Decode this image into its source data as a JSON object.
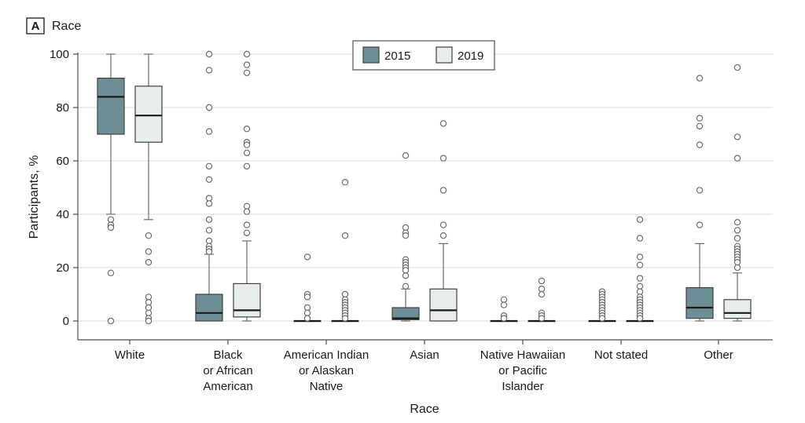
{
  "chart_data": {
    "type": "box",
    "panel_letter": "A",
    "title": "Race",
    "xlabel": "Race",
    "ylabel": "Participants, %",
    "ylim": [
      0,
      100
    ],
    "yticks": [
      0,
      20,
      40,
      60,
      80,
      100
    ],
    "grid": true,
    "legend_position": "top-center",
    "series": [
      {
        "name": "2015",
        "color": "#6e8e96"
      },
      {
        "name": "2019",
        "color": "#e7ecec"
      }
    ],
    "categories": [
      {
        "label": [
          "White"
        ],
        "boxes": [
          {
            "q1": 70,
            "median": 84,
            "q3": 91,
            "whisker_low": 40,
            "whisker_high": 100,
            "outliers": [
              38,
              36,
              35,
              18,
              0
            ]
          },
          {
            "q1": 67,
            "median": 77,
            "q3": 88,
            "whisker_low": 38,
            "whisker_high": 100,
            "outliers": [
              32,
              26,
              22,
              9,
              7,
              5,
              3,
              1,
              0
            ]
          }
        ]
      },
      {
        "label": [
          "Black",
          "or African",
          "American"
        ],
        "boxes": [
          {
            "q1": 0,
            "median": 3,
            "q3": 10,
            "whisker_low": 0,
            "whisker_high": 25,
            "outliers": [
              100,
              94,
              80,
              71,
              58,
              53,
              46,
              44,
              38,
              34,
              30,
              28,
              27,
              26
            ]
          },
          {
            "q1": 1.5,
            "median": 4,
            "q3": 14,
            "whisker_low": 0,
            "whisker_high": 30,
            "outliers": [
              100,
              96,
              93,
              72,
              67,
              66,
              63,
              58,
              43,
              41,
              36,
              33
            ]
          }
        ]
      },
      {
        "label": [
          "American Indian",
          "or Alaskan",
          "Native"
        ],
        "boxes": [
          {
            "q1": 0,
            "median": 0,
            "q3": 0,
            "whisker_low": 0,
            "whisker_high": 0,
            "outliers": [
              24,
              10,
              9,
              5,
              3,
              1
            ]
          },
          {
            "q1": 0,
            "median": 0,
            "q3": 0,
            "whisker_low": 0,
            "whisker_high": 0,
            "outliers": [
              52,
              32,
              10,
              8,
              7,
              6,
              5,
              4,
              3,
              2,
              1
            ]
          }
        ]
      },
      {
        "label": [
          "Asian"
        ],
        "boxes": [
          {
            "q1": 0.5,
            "median": 1,
            "q3": 5,
            "whisker_low": 0,
            "whisker_high": 12,
            "outliers": [
              62,
              35,
              33,
              32,
              23,
              22,
              21,
              20,
              19,
              17,
              13
            ]
          },
          {
            "q1": 0,
            "median": 4,
            "q3": 12,
            "whisker_low": 0,
            "whisker_high": 29,
            "outliers": [
              74,
              61,
              49,
              36,
              32
            ]
          }
        ]
      },
      {
        "label": [
          "Native Hawaiian",
          "or Pacific",
          "Islander"
        ],
        "boxes": [
          {
            "q1": 0,
            "median": 0,
            "q3": 0,
            "whisker_low": 0,
            "whisker_high": 0,
            "outliers": [
              8,
              6,
              2,
              1
            ]
          },
          {
            "q1": 0,
            "median": 0,
            "q3": 0,
            "whisker_low": 0,
            "whisker_high": 0,
            "outliers": [
              15,
              12,
              10,
              3,
              2,
              1
            ]
          }
        ]
      },
      {
        "label": [
          "Not stated"
        ],
        "boxes": [
          {
            "q1": 0,
            "median": 0,
            "q3": 0,
            "whisker_low": 0,
            "whisker_high": 0,
            "outliers": [
              11,
              10,
              9,
              8,
              7,
              6,
              5,
              4,
              3,
              2,
              1
            ]
          },
          {
            "q1": 0,
            "median": 0,
            "q3": 0,
            "whisker_low": 0,
            "whisker_high": 0,
            "outliers": [
              38,
              31,
              24,
              21,
              16,
              13,
              11,
              9,
              8,
              7,
              6,
              5,
              4,
              3,
              2,
              1
            ]
          }
        ]
      },
      {
        "label": [
          "Other"
        ],
        "boxes": [
          {
            "q1": 1,
            "median": 5,
            "q3": 12.5,
            "whisker_low": 0,
            "whisker_high": 29,
            "outliers": [
              91,
              76,
              73,
              66,
              49,
              36
            ]
          },
          {
            "q1": 1,
            "median": 3,
            "q3": 8,
            "whisker_low": 0,
            "whisker_high": 18,
            "outliers": [
              95,
              69,
              61,
              37,
              34,
              31,
              28,
              27,
              26,
              25,
              24,
              23,
              22,
              20
            ]
          }
        ]
      }
    ]
  }
}
